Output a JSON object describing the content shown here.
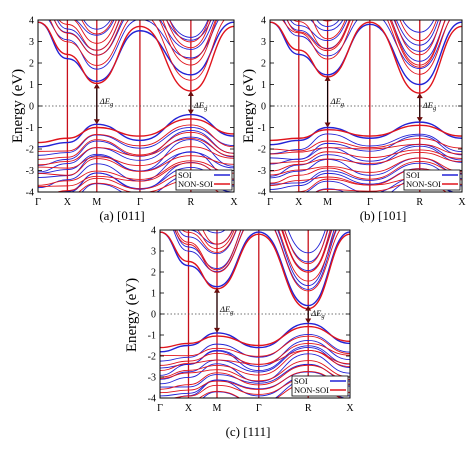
{
  "colors": {
    "soi": "#2323d6",
    "non_soi": "#e0141c",
    "kpath": "#c8101a",
    "frame": "#000000"
  },
  "chart_data": [
    {
      "type": "line",
      "title": "",
      "caption": "(a) [011]",
      "xlabel": "",
      "ylabel": "Energy (eV)",
      "ylim": [
        -4,
        4
      ],
      "yticks": [
        "-4",
        "-3",
        "-2",
        "-1",
        "0",
        "1",
        "2",
        "3",
        "4"
      ],
      "k_points": [
        "Γ",
        "X",
        "M",
        "Γ",
        "R",
        "X"
      ],
      "k_positions": [
        0,
        0.15,
        0.3,
        0.52,
        0.78,
        1.0
      ],
      "fermi_level": 0,
      "legend": {
        "placement": "bottom-right",
        "entries": [
          "SOI",
          "NON-SOI"
        ]
      },
      "gap_label": "ΔE",
      "gap_subscript": "g",
      "gap_arrows": [
        {
          "k": "M",
          "from": -0.85,
          "to": 1.05
        },
        {
          "k": "R",
          "from": -0.4,
          "to": 0.7
        }
      ],
      "series": [
        {
          "name": "SOI",
          "role": "conduction-min",
          "x": [
            "Γ",
            "X",
            "M",
            "Γ",
            "R",
            "X"
          ],
          "y": [
            3.9,
            2.2,
            1.15,
            3.5,
            1.45,
            3.9
          ]
        },
        {
          "name": "NON-SOI",
          "role": "conduction-min",
          "x": [
            "Γ",
            "X",
            "M",
            "Γ",
            "R",
            "X"
          ],
          "y": [
            3.9,
            2.4,
            1.05,
            3.7,
            0.7,
            3.7
          ]
        },
        {
          "name": "SOI",
          "role": "valence-max",
          "x": [
            "Γ",
            "X",
            "M",
            "Γ",
            "R",
            "X"
          ],
          "y": [
            -1.9,
            -1.7,
            -0.85,
            -1.6,
            -0.4,
            -1.4
          ]
        },
        {
          "name": "NON-SOI",
          "role": "valence-max",
          "x": [
            "Γ",
            "X",
            "M",
            "Γ",
            "R",
            "X"
          ],
          "y": [
            -1.7,
            -1.5,
            -1.0,
            -1.4,
            -0.6,
            -1.3
          ]
        }
      ]
    },
    {
      "type": "line",
      "title": "",
      "caption": "(b) [101]",
      "xlabel": "",
      "ylabel": "Energy (eV)",
      "ylim": [
        -4,
        4
      ],
      "yticks": [
        "-4",
        "-3",
        "-2",
        "-1",
        "0",
        "1",
        "2",
        "3",
        "4"
      ],
      "k_points": [
        "Γ",
        "X",
        "M",
        "Γ",
        "R",
        "X"
      ],
      "k_positions": [
        0,
        0.15,
        0.3,
        0.52,
        0.78,
        1.0
      ],
      "fermi_level": 0,
      "legend": {
        "placement": "bottom-right",
        "entries": [
          "SOI",
          "NON-SOI"
        ]
      },
      "gap_label": "ΔE",
      "gap_subscript": "g",
      "gap_arrows": [
        {
          "k": "M",
          "from": -1.0,
          "to": 1.4
        },
        {
          "k": "R",
          "from": -0.75,
          "to": 0.6
        }
      ],
      "series": [
        {
          "name": "SOI",
          "role": "conduction-min",
          "x": [
            "Γ",
            "X",
            "M",
            "Γ",
            "R",
            "X"
          ],
          "y": [
            3.9,
            2.4,
            1.45,
            3.8,
            1.0,
            3.9
          ]
        },
        {
          "name": "NON-SOI",
          "role": "conduction-min",
          "x": [
            "Γ",
            "X",
            "M",
            "Γ",
            "R",
            "X"
          ],
          "y": [
            3.9,
            2.6,
            1.35,
            3.9,
            0.6,
            3.7
          ]
        },
        {
          "name": "SOI",
          "role": "valence-max",
          "x": [
            "Γ",
            "X",
            "M",
            "Γ",
            "R",
            "X"
          ],
          "y": [
            -1.8,
            -1.6,
            -1.0,
            -1.5,
            -0.75,
            -1.5
          ]
        },
        {
          "name": "NON-SOI",
          "role": "valence-max",
          "x": [
            "Γ",
            "X",
            "M",
            "Γ",
            "R",
            "X"
          ],
          "y": [
            -1.6,
            -1.5,
            -1.1,
            -1.4,
            -0.9,
            -1.4
          ]
        }
      ]
    },
    {
      "type": "line",
      "title": "",
      "caption": "(c) [111]",
      "xlabel": "",
      "ylabel": "Energy (eV)",
      "ylim": [
        -4,
        4
      ],
      "yticks": [
        "-4",
        "-3",
        "-2",
        "-1",
        "0",
        "1",
        "2",
        "3",
        "4"
      ],
      "k_points": [
        "Γ",
        "X",
        "M",
        "Γ",
        "R",
        "X"
      ],
      "k_positions": [
        0,
        0.15,
        0.3,
        0.52,
        0.78,
        1.0
      ],
      "fermi_level": 0,
      "legend": {
        "placement": "bottom-right",
        "entries": [
          "SOI",
          "NON-SOI"
        ]
      },
      "gap_label": "ΔE",
      "gap_subscript": "g",
      "gap_arrows": [
        {
          "k": "M",
          "from": -0.9,
          "to": 1.25
        },
        {
          "k": "R",
          "from": -0.45,
          "to": 0.4
        }
      ],
      "series": [
        {
          "name": "SOI",
          "role": "conduction-min",
          "x": [
            "Γ",
            "X",
            "M",
            "Γ",
            "R",
            "X"
          ],
          "y": [
            3.9,
            2.3,
            1.3,
            3.9,
            0.4,
            3.9
          ]
        },
        {
          "name": "NON-SOI",
          "role": "conduction-min",
          "x": [
            "Γ",
            "X",
            "M",
            "Γ",
            "R",
            "X"
          ],
          "y": [
            3.9,
            2.5,
            1.2,
            3.8,
            0.25,
            3.8
          ]
        },
        {
          "name": "SOI",
          "role": "valence-max",
          "x": [
            "Γ",
            "X",
            "M",
            "Γ",
            "R",
            "X"
          ],
          "y": [
            -1.8,
            -1.5,
            -0.9,
            -1.6,
            -0.45,
            -1.4
          ]
        },
        {
          "name": "NON-SOI",
          "role": "valence-max",
          "x": [
            "Γ",
            "X",
            "M",
            "Γ",
            "R",
            "X"
          ],
          "y": [
            -1.6,
            -1.4,
            -1.05,
            -1.5,
            -0.6,
            -1.3
          ]
        }
      ]
    }
  ]
}
